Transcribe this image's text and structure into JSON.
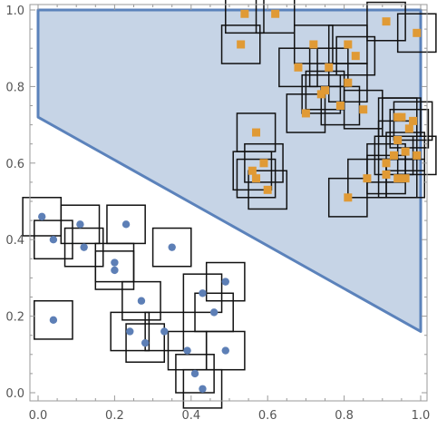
{
  "chart_data": {
    "type": "scatter",
    "title": "",
    "xlabel": "",
    "ylabel": "",
    "xlim": [
      0,
      1
    ],
    "ylim": [
      0,
      1
    ],
    "x_ticks": [
      "0.0",
      "0.2",
      "0.4",
      "0.6",
      "0.8",
      "1.0"
    ],
    "y_ticks": [
      "0.0",
      "0.2",
      "0.4",
      "0.6",
      "0.8",
      "1.0"
    ],
    "grid": false,
    "legend": "none",
    "region": {
      "polygon": [
        [
          0,
          1
        ],
        [
          1,
          1
        ],
        [
          1,
          0.16
        ],
        [
          0,
          0.72
        ]
      ],
      "fill": "#c6d4e6",
      "stroke": "#5b82bb"
    },
    "box_half_width": 0.05,
    "box_color": "#111111",
    "series": [
      {
        "marker": "circle",
        "color": "#5d7fb6",
        "points": [
          [
            0.01,
            0.46
          ],
          [
            0.04,
            0.4
          ],
          [
            0.11,
            0.44
          ],
          [
            0.12,
            0.38
          ],
          [
            0.04,
            0.19
          ],
          [
            0.23,
            0.44
          ],
          [
            0.2,
            0.34
          ],
          [
            0.2,
            0.32
          ],
          [
            0.35,
            0.38
          ],
          [
            0.27,
            0.24
          ],
          [
            0.24,
            0.16
          ],
          [
            0.28,
            0.13
          ],
          [
            0.33,
            0.16
          ],
          [
            0.39,
            0.11
          ],
          [
            0.41,
            0.05
          ],
          [
            0.43,
            0.26
          ],
          [
            0.49,
            0.29
          ],
          [
            0.46,
            0.21
          ],
          [
            0.49,
            0.11
          ],
          [
            0.43,
            0.01
          ]
        ]
      },
      {
        "marker": "square",
        "color": "#e09a35",
        "points": [
          [
            0.54,
            0.99
          ],
          [
            0.62,
            0.99
          ],
          [
            0.53,
            0.91
          ],
          [
            0.72,
            0.91
          ],
          [
            0.81,
            0.91
          ],
          [
            0.83,
            0.88
          ],
          [
            0.68,
            0.85
          ],
          [
            0.76,
            0.85
          ],
          [
            0.91,
            0.97
          ],
          [
            0.99,
            0.94
          ],
          [
            0.7,
            0.73
          ],
          [
            0.74,
            0.78
          ],
          [
            0.75,
            0.79
          ],
          [
            0.81,
            0.81
          ],
          [
            0.79,
            0.75
          ],
          [
            0.85,
            0.74
          ],
          [
            0.57,
            0.68
          ],
          [
            0.95,
            0.72
          ],
          [
            0.94,
            0.66
          ],
          [
            0.97,
            0.69
          ],
          [
            0.98,
            0.71
          ],
          [
            0.94,
            0.72
          ],
          [
            0.59,
            0.6
          ],
          [
            0.56,
            0.58
          ],
          [
            0.57,
            0.56
          ],
          [
            0.6,
            0.53
          ],
          [
            0.81,
            0.51
          ],
          [
            0.86,
            0.56
          ],
          [
            0.91,
            0.57
          ],
          [
            0.94,
            0.56
          ],
          [
            0.96,
            0.56
          ],
          [
            0.99,
            0.62
          ],
          [
            0.96,
            0.63
          ],
          [
            0.93,
            0.62
          ],
          [
            0.91,
            0.6
          ]
        ]
      }
    ]
  }
}
